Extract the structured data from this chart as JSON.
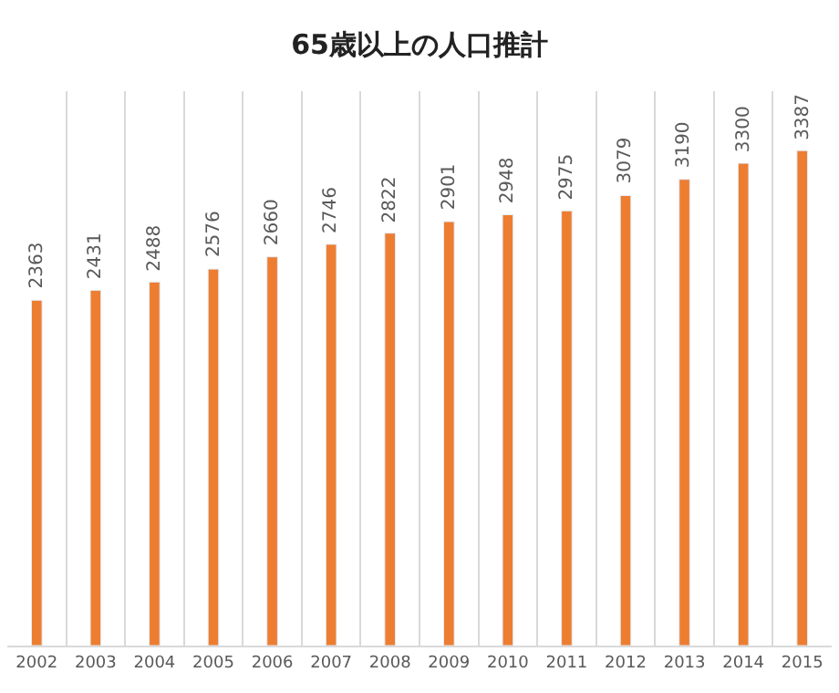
{
  "chart_data": {
    "type": "bar",
    "title": "65歳以上の人口推計",
    "categories": [
      "2002",
      "2003",
      "2004",
      "2005",
      "2006",
      "2007",
      "2008",
      "2009",
      "2010",
      "2011",
      "2012",
      "2013",
      "2014",
      "2015"
    ],
    "values": [
      2363,
      2431,
      2488,
      2576,
      2660,
      2746,
      2822,
      2901,
      2948,
      2975,
      3079,
      3190,
      3300,
      3387
    ],
    "color": "#ed7d31",
    "data_labels": true,
    "grid": "x",
    "legend": false
  }
}
